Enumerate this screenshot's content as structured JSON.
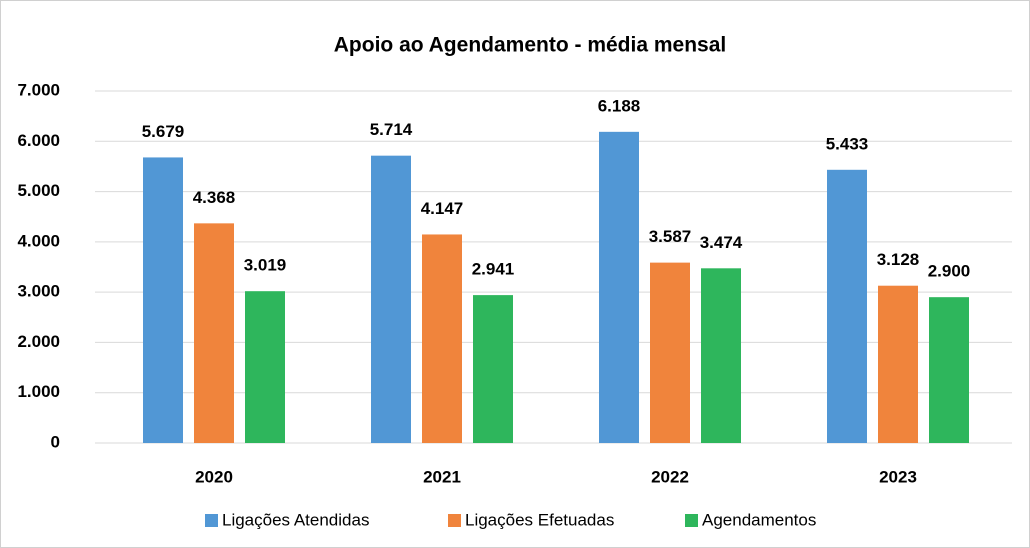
{
  "chart_data": {
    "type": "bar",
    "title": "Apoio ao Agendamento - média mensal",
    "categories": [
      "2020",
      "2021",
      "2022",
      "2023"
    ],
    "series": [
      {
        "name": "Ligações Atendidas",
        "color": "#5197d5",
        "values": [
          5679,
          5714,
          6188,
          5433
        ],
        "value_labels": [
          "5.679",
          "5.714",
          "6.188",
          "5.433"
        ]
      },
      {
        "name": "Ligações Efetuadas",
        "color": "#f0843c",
        "values": [
          4368,
          4147,
          3587,
          3128
        ],
        "value_labels": [
          "4.368",
          "4.147",
          "3.587",
          "3.128"
        ]
      },
      {
        "name": "Agendamentos",
        "color": "#2eb65c",
        "values": [
          3019,
          2941,
          3474,
          2900
        ],
        "value_labels": [
          "3.019",
          "2.941",
          "3.474",
          "2.900"
        ]
      }
    ],
    "ylim": [
      0,
      7000
    ],
    "yticks": [
      0,
      {
        "value": 1000,
        "label": "1.000"
      },
      {
        "value": 2000,
        "label": "2.000"
      },
      {
        "value": 3000,
        "label": "3.000"
      },
      {
        "value": 4000,
        "label": "4.000"
      },
      {
        "value": 5000,
        "label": "5.000"
      },
      {
        "value": 6000,
        "label": "6.000"
      },
      {
        "value": 7000,
        "label": "7.000"
      }
    ],
    "grid": true,
    "legend": "bottom"
  }
}
